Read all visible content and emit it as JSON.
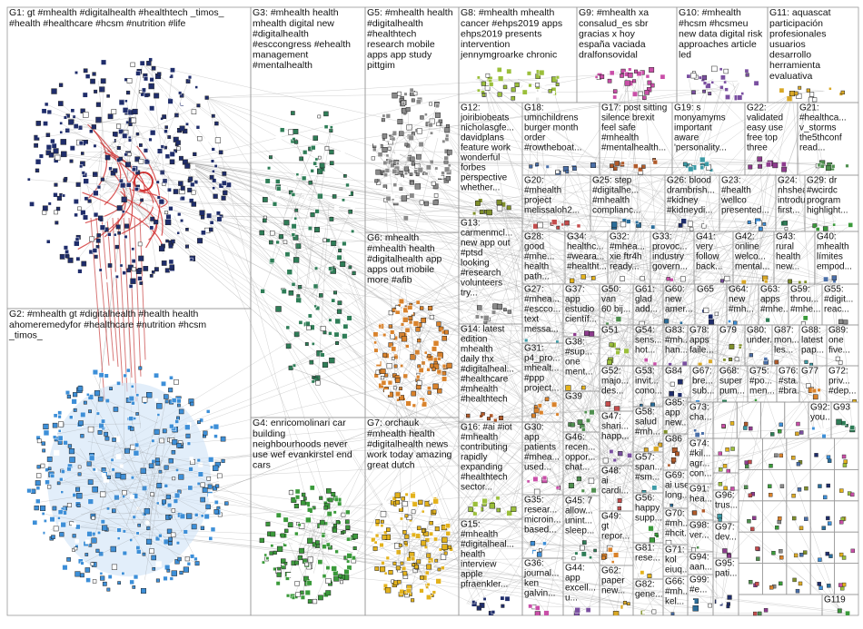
{
  "groups": [
    {
      "lines": [
        "G1: gt #mhealth #digitalhealth #healthtech _timos_",
        "#health #healthcare #hcsm #nutrition #life"
      ]
    },
    {
      "lines": [
        "G2: #mhealth gt #digitalhealth #health health",
        "ahomeremedyfor #healthcare #nutrition #hcsm",
        "_timos_"
      ]
    },
    {
      "lines": [
        "G3: #mhealth health",
        "mhealth digital new",
        "#digitalhealth",
        "#esccongress #ehealth",
        "management",
        "#mentalhealth"
      ]
    },
    {
      "lines": [
        "G4: enricomolinari car",
        "building",
        "neighbourhoods never",
        "use wef evankirstel end",
        "cars"
      ]
    },
    {
      "lines": [
        "G5: #mhealth health",
        "#digitalhealth",
        "#healthtech",
        "research mobile",
        "apps app study",
        "pittgim"
      ]
    },
    {
      "lines": [
        "G6: mhealth",
        "#mhealth health",
        "#digitalhealth app",
        "apps out mobile",
        "more #afib"
      ]
    },
    {
      "lines": [
        "G7: orchauk",
        "#mhealth health",
        "#digitalhealth news",
        "work today amazing",
        "great dutch"
      ]
    },
    {
      "lines": [
        "G8: #mhealth mhealth",
        "cancer #ehps2019 apps",
        "ehps2019 presents",
        "intervention",
        "jennymgroarke chronic"
      ]
    },
    {
      "lines": [
        "G9: #mhealth xa",
        "consalud_es sbr",
        "gracias x hoy",
        "españa vaciada",
        "dralfonsovidal"
      ]
    },
    {
      "lines": [
        "G10: #mhealth",
        "#hcsm #hcsmeu",
        "new data digital risk",
        "approaches article",
        "led"
      ]
    },
    {
      "lines": [
        "G11: aquascat",
        "participación",
        "profesionales",
        "usuarios",
        "desarrollo",
        "herramienta",
        "evaluativa"
      ]
    },
    {
      "lines": [
        "G12:",
        "joiribiobeats",
        "nicholasgfe...",
        "davidplans",
        "feature work",
        "wonderful",
        "forbes",
        "perspective",
        "whether..."
      ]
    },
    {
      "lines": [
        "G18:",
        "umnchildrens",
        "burger month",
        "order",
        "#rowtheboat..."
      ]
    },
    {
      "lines": [
        "G17: post sitting",
        "silence brexit",
        "feel safe",
        "#mhealth",
        "#mentalhealth..."
      ]
    },
    {
      "lines": [
        "G19: s",
        "monyamyms",
        "important",
        "aware",
        "'personality..."
      ]
    },
    {
      "lines": [
        "G22:",
        "validated",
        "easy use",
        "free top",
        "three"
      ]
    },
    {
      "lines": [
        "G21:",
        "#healthca...",
        "v_storms",
        "the5thconf",
        "read..."
      ]
    },
    {
      "lines": [
        "G20:",
        "#mhealth",
        "project",
        "melissaloh2..."
      ]
    },
    {
      "lines": [
        "G25: step",
        "#digitalhe...",
        "#mhealth",
        "complianc..."
      ]
    },
    {
      "lines": [
        "G26: blood",
        "drambrish...",
        "#kidney",
        "#kidneydi..."
      ]
    },
    {
      "lines": [
        "G23:",
        "#health",
        "wellco",
        "presented..."
      ]
    },
    {
      "lines": [
        "G24:",
        "nhshealth...",
        "introducing",
        "first..."
      ]
    },
    {
      "lines": [
        "G29: dr",
        "#wcirdc",
        "program",
        "highlight..."
      ]
    },
    {
      "lines": [
        "G13:",
        "carmenmcl...",
        "new app out",
        "#ptsd",
        "looking",
        "#research",
        "volunteers",
        "try..."
      ]
    },
    {
      "lines": [
        "G28:",
        "good",
        "#mhe...",
        "health",
        "path..."
      ]
    },
    {
      "lines": [
        "G34:",
        "healthc...",
        "#weara...",
        "#healtht..."
      ]
    },
    {
      "lines": [
        "G32:",
        "#mhea...",
        "xie ftr4h",
        "ready..."
      ]
    },
    {
      "lines": [
        "G33:",
        "provoc...",
        "industry",
        "govern..."
      ]
    },
    {
      "lines": [
        "G41:",
        "very",
        "follow",
        "back..."
      ]
    },
    {
      "lines": [
        "G42:",
        "online",
        "welco...",
        "mental..."
      ]
    },
    {
      "lines": [
        "G43:",
        "rural",
        "health",
        "new..."
      ]
    },
    {
      "lines": [
        "G40:",
        "mhealth",
        "límites",
        "empod..."
      ]
    },
    {
      "lines": [
        "G14: latest",
        "edition",
        "mhealth",
        "daily thx",
        "#digitalheal...",
        "#healthcare",
        "#mhealth",
        "#healthtech"
      ]
    },
    {
      "lines": [
        "G27:",
        "#mhea...",
        "#escco...",
        "text",
        "messa..."
      ]
    },
    {
      "lines": [
        "G37:",
        "app",
        "estudio",
        "científ..."
      ]
    },
    {
      "lines": [
        "G50:",
        "van",
        "60 bij..."
      ]
    },
    {
      "lines": [
        "G61:",
        "glad",
        "add..."
      ]
    },
    {
      "lines": [
        "G60:",
        "new",
        "amer..."
      ]
    },
    {
      "lines": [
        "G65"
      ]
    },
    {
      "lines": [
        "G64:",
        "new",
        "#mh..."
      ]
    },
    {
      "lines": [
        "G63:",
        "apps",
        "#mhe..."
      ]
    },
    {
      "lines": [
        "G59:",
        "throu...",
        "#mhe..."
      ]
    },
    {
      "lines": [
        "G55:",
        "#digit...",
        "reac..."
      ]
    },
    {
      "lines": [
        "G31:",
        "p4_pro...",
        "mhealt...",
        "#ppp",
        "project..."
      ]
    },
    {
      "lines": [
        "G38:",
        "#sup...",
        "one",
        "ment..."
      ]
    },
    {
      "lines": [
        "G51"
      ]
    },
    {
      "lines": [
        "G54:",
        "sens...",
        "hot..."
      ]
    },
    {
      "lines": [
        "G83:",
        "#mh...",
        "han..."
      ]
    },
    {
      "lines": [
        "G78:",
        "apps",
        "faile..."
      ]
    },
    {
      "lines": [
        "G79"
      ]
    },
    {
      "lines": [
        "G80:",
        "under..."
      ]
    },
    {
      "lines": [
        "G87:",
        "mon...",
        "les..."
      ]
    },
    {
      "lines": [
        "G88:",
        "latest",
        "pap..."
      ]
    },
    {
      "lines": [
        "G89:",
        "one",
        "five..."
      ]
    },
    {
      "lines": [
        "G39"
      ]
    },
    {
      "lines": [
        "G52:",
        "majo...",
        "des..."
      ]
    },
    {
      "lines": [
        "G53:",
        "invit...",
        "cono..."
      ]
    },
    {
      "lines": [
        "G84"
      ]
    },
    {
      "lines": [
        "G67:",
        "bre...",
        "sub..."
      ]
    },
    {
      "lines": [
        "G68:",
        "super",
        "pum..."
      ]
    },
    {
      "lines": [
        "G75:",
        "#po...",
        "men..."
      ]
    },
    {
      "lines": [
        "G76:",
        "#sta...",
        "#bra..."
      ]
    },
    {
      "lines": [
        "G77"
      ]
    },
    {
      "lines": [
        "G72:",
        "priv...",
        "#dep..."
      ]
    },
    {
      "lines": [
        "G16: #ai #iot",
        "#mhealth",
        "contributing",
        "rapidly",
        "expanding",
        "#healthtech",
        "sector..."
      ]
    },
    {
      "lines": [
        "G30:",
        "app",
        "patients",
        "#mhea...",
        "used..."
      ]
    },
    {
      "lines": [
        "G47:",
        "shari...",
        "happ..."
      ]
    },
    {
      "lines": [
        "G58:",
        "salud",
        "#mh..."
      ]
    },
    {
      "lines": [
        "G85:",
        "app",
        "new..."
      ]
    },
    {
      "lines": [
        "G73:",
        "cha..."
      ]
    },
    {
      "lines": [
        "G86"
      ]
    },
    {
      "lines": [
        "G57:",
        "span...",
        "#sm..."
      ]
    },
    {
      "lines": [
        "G74:",
        "#kil...",
        "agr...",
        "con..."
      ]
    },
    {
      "lines": [
        "G46:",
        "recen...",
        "oppor...",
        "chat..."
      ]
    },
    {
      "lines": [
        "G48:",
        "ai",
        "cardi..."
      ]
    },
    {
      "lines": [
        "G69:",
        "ai use",
        "long..."
      ]
    },
    {
      "lines": [
        "G15:",
        "#mhealth",
        "#digitalheal...",
        "health",
        "interview",
        "apple",
        "pfraenkler..."
      ]
    },
    {
      "lines": [
        "G35:",
        "resear...",
        "microin...",
        "based..."
      ]
    },
    {
      "lines": [
        "G45: 7",
        "allow...",
        "unint...",
        "sleep..."
      ]
    },
    {
      "lines": [
        "G56:",
        "happy",
        "supp..."
      ]
    },
    {
      "lines": [
        "G70:",
        "#mh...",
        "#hcit..."
      ]
    },
    {
      "lines": [
        "G49:",
        "gt",
        "repor..."
      ]
    },
    {
      "lines": [
        "G81:",
        "rese..."
      ]
    },
    {
      "lines": [
        "G71:",
        "kol",
        "eiuq..."
      ]
    },
    {
      "lines": [
        "G36:",
        "journal...",
        "ken",
        "galvin..."
      ]
    },
    {
      "lines": [
        "G44:",
        "app",
        "excell...",
        "u..."
      ]
    },
    {
      "lines": [
        "G62:",
        "paper",
        "new..."
      ]
    },
    {
      "lines": [
        "G82:",
        "gene..."
      ]
    },
    {
      "lines": [
        "G66:",
        "#mh...",
        "kel..."
      ]
    },
    {
      "lines": [
        "G91:",
        "hea..."
      ]
    },
    {
      "lines": [
        "G96:",
        "trus..."
      ]
    },
    {
      "lines": [
        "G97:",
        "dev..."
      ]
    },
    {
      "lines": [
        "G98:",
        "ver..."
      ]
    },
    {
      "lines": [
        "G94:",
        "aan..."
      ]
    },
    {
      "lines": [
        "G99:",
        "#e..."
      ]
    },
    {
      "lines": [
        "G95:",
        "pati..."
      ]
    },
    {
      "lines": [
        "G92:",
        "you..."
      ]
    },
    {
      "lines": [
        "G93"
      ]
    },
    {
      "lines": [
        "G119"
      ]
    }
  ]
}
